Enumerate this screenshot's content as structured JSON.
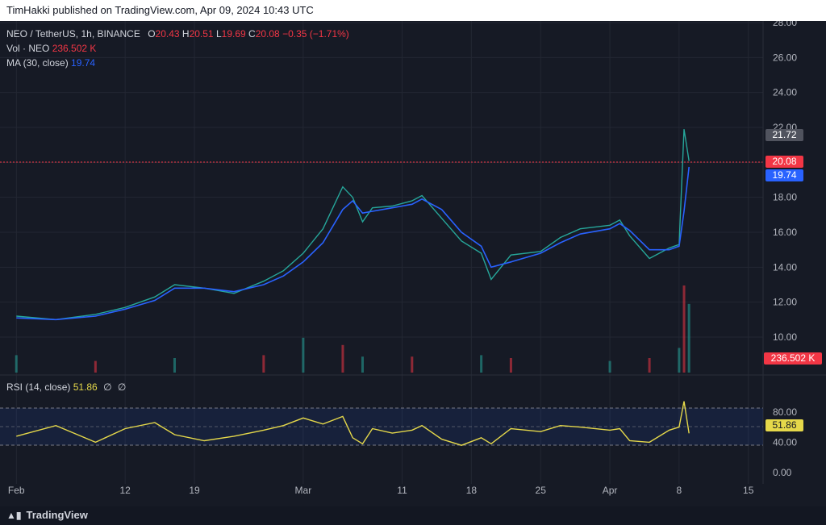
{
  "header": {
    "published_text": "TimHakki published on TradingView.com, Apr 09, 2024 10:43 UTC"
  },
  "legend": {
    "symbol": "NEO / TetherUS, 1h, BINANCE",
    "open_label": "O",
    "open": "20.43",
    "high_label": "H",
    "high": "20.51",
    "low_label": "L",
    "low": "19.69",
    "close_label": "C",
    "close": "20.08",
    "change": "−0.35 (−1.71%)",
    "vol_label": "Vol · NEO",
    "vol_value": "236.502 K",
    "ma_label": "MA (30, close)",
    "ma_value": "19.74"
  },
  "rsi_legend": {
    "label": "RSI (14, close)",
    "value": "51.86",
    "extra1": "∅",
    "extra2": "∅"
  },
  "price_tags": {
    "high_tag": "21.72",
    "close_tag": "20.08",
    "ma_tag": "19.74",
    "vol_tag": "236.502 K",
    "rsi_tag": "51.86"
  },
  "footer": {
    "brand": "TradingView"
  },
  "colors": {
    "background": "#161a25",
    "up": "#26a69a",
    "down": "#f23645",
    "ma": "#2962ff",
    "rsi": "#e5d84a"
  },
  "chart_data": [
    {
      "type": "line",
      "title": "NEO / TetherUS, 1h, BINANCE",
      "x_ticks": [
        "Feb",
        "12",
        "19",
        "Mar",
        "11",
        "18",
        "25",
        "Apr",
        "8",
        "15"
      ],
      "y_ticks": [
        "28.00",
        "26.00",
        "24.00",
        "22.00",
        "18.00",
        "16.00",
        "14.00",
        "12.00",
        "10.00"
      ],
      "ylim": [
        9.5,
        28.8
      ],
      "x": [
        "Feb 1",
        "Feb 5",
        "Feb 9",
        "Feb 12",
        "Feb 15",
        "Feb 17",
        "Feb 20",
        "Feb 23",
        "Feb 26",
        "Feb 28",
        "Mar 1",
        "Mar 3",
        "Mar 5",
        "Mar 6",
        "Mar 7",
        "Mar 8",
        "Mar 10",
        "Mar 12",
        "Mar 13",
        "Mar 15",
        "Mar 17",
        "Mar 19",
        "Mar 20",
        "Mar 22",
        "Mar 25",
        "Mar 27",
        "Mar 29",
        "Apr 1",
        "Apr 2",
        "Apr 3",
        "Apr 5",
        "Apr 7",
        "Apr 8",
        "Apr 8 12h",
        "Apr 9"
      ],
      "series": [
        {
          "values": [
            11.2,
            11.0,
            11.3,
            11.7,
            12.3,
            13.0,
            12.8,
            12.5,
            13.2,
            13.8,
            14.8,
            16.2,
            18.6,
            18.0,
            16.6,
            17.4,
            17.5,
            17.8,
            18.1,
            16.8,
            15.5,
            14.8,
            13.3,
            14.7,
            14.9,
            15.7,
            16.2,
            16.4,
            16.7,
            15.8,
            14.5,
            15.1,
            15.3,
            21.9,
            20.08
          ]
        },
        {
          "values": [
            11.1,
            11.0,
            11.2,
            11.6,
            12.1,
            12.8,
            12.8,
            12.6,
            13.0,
            13.5,
            14.3,
            15.4,
            17.3,
            17.8,
            17.1,
            17.2,
            17.4,
            17.6,
            17.9,
            17.3,
            16.0,
            15.2,
            14.0,
            14.3,
            14.8,
            15.4,
            15.9,
            16.2,
            16.5,
            16.1,
            15.0,
            15.0,
            15.2,
            17.2,
            19.74
          ]
        }
      ]
    },
    {
      "type": "bar",
      "title": "Vol · NEO",
      "categories": [
        "Feb 1",
        "Feb 9",
        "Feb 17",
        "Feb 26",
        "Mar 1",
        "Mar 5",
        "Mar 7",
        "Mar 12",
        "Mar 19",
        "Mar 22",
        "Apr 1",
        "Apr 5",
        "Apr 8",
        "Apr 8 12h",
        "Apr 9"
      ],
      "values": [
        60,
        40,
        50,
        60,
        120,
        95,
        55,
        55,
        60,
        50,
        40,
        50,
        85,
        300,
        236.502
      ],
      "unit": "K"
    },
    {
      "type": "line",
      "title": "RSI (14, close)",
      "y_ticks": [
        "80.00",
        "40.00",
        "0.00"
      ],
      "ylim": [
        0,
        100
      ],
      "bands": [
        30,
        50,
        70
      ],
      "x": [
        "Feb 1",
        "Feb 5",
        "Feb 9",
        "Feb 12",
        "Feb 15",
        "Feb 17",
        "Feb 20",
        "Feb 23",
        "Feb 26",
        "Feb 28",
        "Mar 1",
        "Mar 3",
        "Mar 5",
        "Mar 6",
        "Mar 7",
        "Mar 8",
        "Mar 10",
        "Mar 12",
        "Mar 13",
        "Mar 15",
        "Mar 17",
        "Mar 19",
        "Mar 20",
        "Mar 22",
        "Mar 25",
        "Mar 27",
        "Mar 29",
        "Apr 1",
        "Apr 2",
        "Apr 3",
        "Apr 5",
        "Apr 7",
        "Apr 8",
        "Apr 8 12h",
        "Apr 9"
      ],
      "values": [
        48,
        62,
        40,
        58,
        66,
        50,
        42,
        48,
        56,
        62,
        72,
        64,
        74,
        46,
        38,
        58,
        52,
        56,
        62,
        44,
        36,
        46,
        38,
        58,
        54,
        62,
        60,
        56,
        58,
        42,
        40,
        56,
        60,
        94,
        51.86
      ]
    }
  ]
}
